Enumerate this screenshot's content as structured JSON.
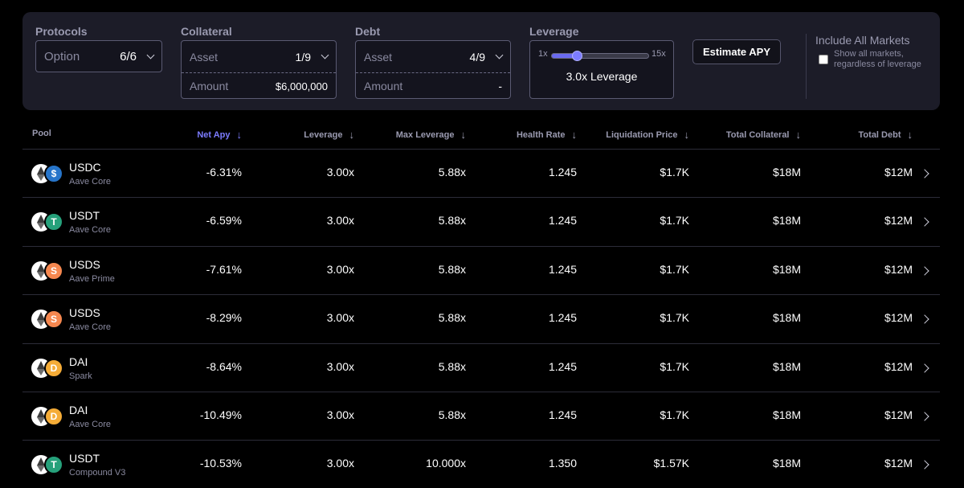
{
  "filters": {
    "protocols": {
      "label": "Protocols",
      "placeholder": "Option",
      "value": "6/6"
    },
    "collateral": {
      "label": "Collateral",
      "asset_placeholder": "Asset",
      "asset_value": "1/9",
      "amount_placeholder": "Amount",
      "amount_value": "$6,000,000"
    },
    "debt": {
      "label": "Debt",
      "asset_placeholder": "Asset",
      "asset_value": "4/9",
      "amount_placeholder": "Amount",
      "amount_value": "-"
    },
    "leverage": {
      "label": "Leverage",
      "min_label": "1x",
      "max_label": "15x",
      "min": 1,
      "max": 15,
      "value": 3,
      "value_text": "3.0x Leverage"
    },
    "estimate_button": "Estimate APY",
    "include_all": {
      "title": "Include All Markets",
      "subtitle": "Show all markets, regardless of leverage",
      "checked": false
    }
  },
  "table": {
    "columns": [
      {
        "key": "pool",
        "label": "Pool",
        "sortable": false,
        "active": false
      },
      {
        "key": "net_apy",
        "label": "Net Apy",
        "sortable": true,
        "active": true
      },
      {
        "key": "leverage",
        "label": "Leverage",
        "sortable": true,
        "active": false
      },
      {
        "key": "max_leverage",
        "label": "Max Leverage",
        "sortable": true,
        "active": false
      },
      {
        "key": "health_rate",
        "label": "Health Rate",
        "sortable": true,
        "active": false
      },
      {
        "key": "liq_price",
        "label": "Liquidation Price",
        "sortable": true,
        "active": false
      },
      {
        "key": "total_collateral",
        "label": "Total Collateral",
        "sortable": true,
        "active": false
      },
      {
        "key": "total_debt",
        "label": "Total Debt",
        "sortable": true,
        "active": false
      }
    ],
    "sort_arrow": "↓",
    "rows": [
      {
        "token": "USDC",
        "protocol": "Aave Core",
        "icon": "usdc-icon",
        "icon_glyph": "$",
        "icon_color": "#2775ca",
        "net_apy": "-6.31%",
        "leverage": "3.00x",
        "max_leverage": "5.88x",
        "health_rate": "1.245",
        "liq_price": "$1.7K",
        "total_collateral": "$18M",
        "total_debt": "$12M"
      },
      {
        "token": "USDT",
        "protocol": "Aave Core",
        "icon": "usdt-icon",
        "icon_glyph": "T",
        "icon_color": "#26a17b",
        "net_apy": "-6.59%",
        "leverage": "3.00x",
        "max_leverage": "5.88x",
        "health_rate": "1.245",
        "liq_price": "$1.7K",
        "total_collateral": "$18M",
        "total_debt": "$12M"
      },
      {
        "token": "USDS",
        "protocol": "Aave Prime",
        "icon": "usds-icon",
        "icon_glyph": "S",
        "icon_color": "#f5874f",
        "net_apy": "-7.61%",
        "leverage": "3.00x",
        "max_leverage": "5.88x",
        "health_rate": "1.245",
        "liq_price": "$1.7K",
        "total_collateral": "$18M",
        "total_debt": "$12M"
      },
      {
        "token": "USDS",
        "protocol": "Aave Core",
        "icon": "usds-icon",
        "icon_glyph": "S",
        "icon_color": "#f5874f",
        "net_apy": "-8.29%",
        "leverage": "3.00x",
        "max_leverage": "5.88x",
        "health_rate": "1.245",
        "liq_price": "$1.7K",
        "total_collateral": "$18M",
        "total_debt": "$12M"
      },
      {
        "token": "DAI",
        "protocol": "Spark",
        "icon": "dai-icon",
        "icon_glyph": "D",
        "icon_color": "#f5ac37",
        "net_apy": "-8.64%",
        "leverage": "3.00x",
        "max_leverage": "5.88x",
        "health_rate": "1.245",
        "liq_price": "$1.7K",
        "total_collateral": "$18M",
        "total_debt": "$12M"
      },
      {
        "token": "DAI",
        "protocol": "Aave Core",
        "icon": "dai-icon",
        "icon_glyph": "D",
        "icon_color": "#f5ac37",
        "net_apy": "-10.49%",
        "leverage": "3.00x",
        "max_leverage": "5.88x",
        "health_rate": "1.245",
        "liq_price": "$1.7K",
        "total_collateral": "$18M",
        "total_debt": "$12M"
      },
      {
        "token": "USDT",
        "protocol": "Compound V3",
        "icon": "usdt-icon",
        "icon_glyph": "T",
        "icon_color": "#26a17b",
        "net_apy": "-10.53%",
        "leverage": "3.00x",
        "max_leverage": "10.000x",
        "health_rate": "1.350",
        "liq_price": "$1.57K",
        "total_collateral": "$18M",
        "total_debt": "$12M"
      }
    ]
  },
  "colors": {
    "accent": "#7c7cff",
    "panel": "#1c1c28",
    "background": "#000000"
  }
}
